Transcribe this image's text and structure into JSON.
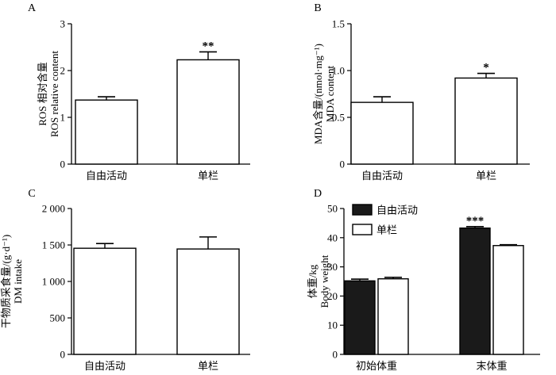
{
  "chart_data": [
    {
      "type": "bar",
      "panel_label": "A",
      "categories": [
        "自由活动",
        "单栏"
      ],
      "values": [
        1.37,
        2.23
      ],
      "errors": [
        0.07,
        0.17
      ],
      "significance": [
        "",
        "**"
      ],
      "ylabel_cn": "ROS 相对含量",
      "ylabel_en": "ROS relative content",
      "ylim": [
        0,
        3
      ],
      "yticks": [
        0,
        1,
        2,
        3
      ],
      "ytick_labels": [
        "0",
        "1",
        "2",
        "3"
      ]
    },
    {
      "type": "bar",
      "panel_label": "B",
      "categories": [
        "自由活动",
        "单栏"
      ],
      "values": [
        0.66,
        0.92
      ],
      "errors": [
        0.06,
        0.05
      ],
      "significance": [
        "",
        "*"
      ],
      "ylabel_cn": "MDA含量/(nmol·mg⁻¹)",
      "ylabel_en": "MDA content",
      "ylim": [
        0,
        1.5
      ],
      "yticks": [
        0,
        0.5,
        1.0,
        1.5
      ],
      "ytick_labels": [
        "0",
        "0.5",
        "1.0",
        "1.5"
      ]
    },
    {
      "type": "bar",
      "panel_label": "C",
      "categories": [
        "自由活动",
        "单栏"
      ],
      "values": [
        1455,
        1445
      ],
      "errors": [
        65,
        165
      ],
      "significance": [
        "",
        ""
      ],
      "ylabel_cn": "干物质采食量/(g·d⁻¹)",
      "ylabel_en": "DM intake",
      "ylim": [
        0,
        2000
      ],
      "yticks": [
        0,
        500,
        1000,
        1500,
        2000
      ],
      "ytick_labels": [
        "0",
        "500",
        "1 000",
        "1 500",
        "2 000"
      ]
    },
    {
      "type": "bar",
      "panel_label": "D",
      "categories": [
        "初始体重",
        "末体重"
      ],
      "series": [
        {
          "name": "自由活动",
          "values": [
            25.2,
            43.3
          ],
          "errors": [
            0.6,
            0.5
          ],
          "significance": [
            "",
            "***"
          ],
          "color": "#1a1a1a"
        },
        {
          "name": "单栏",
          "values": [
            25.9,
            37.3
          ],
          "errors": [
            0.5,
            0.3
          ],
          "significance": [
            "",
            ""
          ],
          "color": "#ffffff"
        }
      ],
      "ylabel_cn": "体重/kg",
      "ylabel_en": "Body weight",
      "ylim": [
        0,
        50
      ],
      "yticks": [
        0,
        10,
        20,
        30,
        40,
        50
      ],
      "ytick_labels": [
        "0",
        "10",
        "20",
        "30",
        "40",
        "50"
      ],
      "legend": "top-left"
    }
  ]
}
